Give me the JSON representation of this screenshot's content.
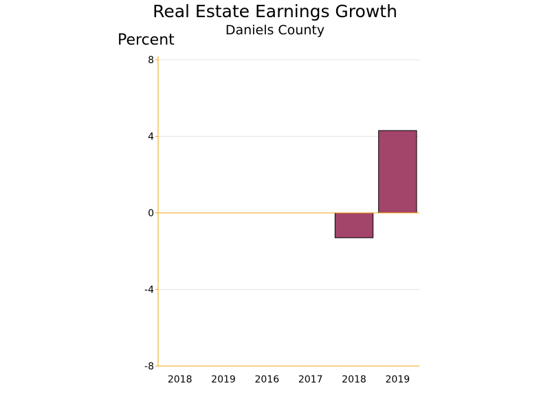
{
  "chart_data": {
    "type": "bar",
    "title": "Real Estate Earnings Growth",
    "subtitle": "Daniels County",
    "ylabel": "Percent",
    "xlabel": "",
    "categories": [
      "2018",
      "2019",
      "2016",
      "2017",
      "2018",
      "2019"
    ],
    "values": [
      null,
      null,
      null,
      null,
      -1.3,
      4.3
    ],
    "ylim": [
      -8,
      8
    ],
    "yticks": [
      8,
      4,
      0,
      -4,
      -8
    ],
    "grid": true,
    "colors": {
      "bar": "#a3446a",
      "axis": "#f0a30a",
      "grid": "#e6e6e6",
      "bar_edge": "#000000"
    }
  }
}
